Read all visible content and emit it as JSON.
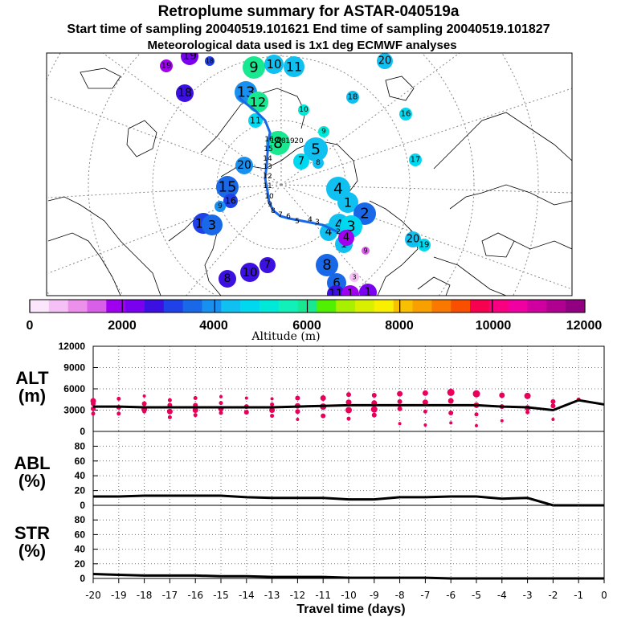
{
  "header": {
    "title": "Retroplume summary for ASTAR-040519a",
    "sampling": "Start time of sampling 20040519.101621     End time of sampling 20040519.101827",
    "met": "Meteorological data used is 1x1 deg ECMWF analyses"
  },
  "colorbar": {
    "title": "Altitude (m)",
    "ticks": [
      "0",
      "2000",
      "4000",
      "6000",
      "8000",
      "10000",
      "12000"
    ],
    "colors": [
      "#fbe6fb",
      "#f5c0f5",
      "#ec90ec",
      "#d860e8",
      "#a000f0",
      "#7a00f0",
      "#3c10e0",
      "#2040e8",
      "#1868e8",
      "#1890f0",
      "#10c0f0",
      "#00d8f0",
      "#00e8d8",
      "#10f0b8",
      "#18e890",
      "#50f000",
      "#a8f000",
      "#d8f000",
      "#f8f000",
      "#f8c000",
      "#f8a000",
      "#f87800",
      "#f85000",
      "#f80050",
      "#f80080",
      "#f000a0",
      "#d000a0",
      "#b00090",
      "#900080"
    ]
  },
  "map_clusters": [
    {
      "label": "19",
      "color": "#7a00f0",
      "size": 11
    },
    {
      "label": "18",
      "color": "#2040e8",
      "size": 6
    },
    {
      "label": "19",
      "color": "#a000f0",
      "size": 8
    },
    {
      "label": "18",
      "color": "#3c10e0",
      "size": 11
    },
    {
      "label": "9",
      "color": "#18e890",
      "size": 14
    },
    {
      "label": "10",
      "color": "#10c0f0",
      "size": 12
    },
    {
      "label": "11",
      "color": "#10c0f0",
      "size": 13
    },
    {
      "label": "20",
      "color": "#10c0f0",
      "size": 10
    },
    {
      "label": "13",
      "color": "#1890f0",
      "size": 14
    },
    {
      "label": "12",
      "color": "#18e890",
      "size": 13
    },
    {
      "label": "11",
      "color": "#00d8f0",
      "size": 9
    },
    {
      "label": "10",
      "color": "#00e8d8",
      "size": 7
    },
    {
      "label": "18",
      "color": "#10c0f0",
      "size": 8
    },
    {
      "label": "16",
      "color": "#00d8f0",
      "size": 8
    },
    {
      "label": "8",
      "color": "#18e890",
      "size": 15
    },
    {
      "label": "9",
      "color": "#00e8d8",
      "size": 7
    },
    {
      "label": "5",
      "color": "#10c0f0",
      "size": 15
    },
    {
      "label": "7",
      "color": "#00d8f0",
      "size": 10
    },
    {
      "label": "8",
      "color": "#10c0f0",
      "size": 7
    },
    {
      "label": "17",
      "color": "#00d8f0",
      "size": 8
    },
    {
      "label": "20",
      "color": "#1890f0",
      "size": 11
    },
    {
      "label": "4",
      "color": "#10c0f0",
      "size": 15
    },
    {
      "label": "1",
      "color": "#10c0f0",
      "size": 13
    },
    {
      "label": "2",
      "color": "#1868e8",
      "size": 14
    },
    {
      "label": "4",
      "color": "#10c0f0",
      "size": 13
    },
    {
      "label": "3",
      "color": "#00d8f0",
      "size": 14
    },
    {
      "label": "4",
      "color": "#10c0f0",
      "size": 11
    },
    {
      "label": "1",
      "color": "#10c0f0",
      "size": 11
    },
    {
      "label": "8",
      "color": "#1868e8",
      "size": 14
    },
    {
      "label": "15",
      "color": "#1868e8",
      "size": 14
    },
    {
      "label": "16",
      "color": "#2040e8",
      "size": 9
    },
    {
      "label": "9",
      "color": "#1890f0",
      "size": 7
    },
    {
      "label": "12",
      "color": "#2040e8",
      "size": 13
    },
    {
      "label": "3",
      "color": "#1868e8",
      "size": 13
    },
    {
      "label": "20",
      "color": "#10c0f0",
      "size": 10
    },
    {
      "label": "19",
      "color": "#00d8f0",
      "size": 8
    },
    {
      "label": "9",
      "color": "#d860e8",
      "size": 5
    },
    {
      "label": "6",
      "color": "#1868e8",
      "size": 12
    },
    {
      "label": "3",
      "color": "#f5c0f5",
      "size": 6
    },
    {
      "label": "7",
      "color": "#3c10e0",
      "size": 10
    },
    {
      "label": "10",
      "color": "#3c10e0",
      "size": 12
    },
    {
      "label": "8",
      "color": "#3c10e0",
      "size": 11
    },
    {
      "label": "11",
      "color": "#3c10e0",
      "size": 11
    },
    {
      "label": "1",
      "color": "#a000f0",
      "size": 11
    },
    {
      "label": "1",
      "color": "#7a00f0",
      "size": 11
    },
    {
      "label": "4",
      "color": "#a000f0",
      "size": 10
    }
  ],
  "path_labels": [
    "2",
    "3",
    "4",
    "5",
    "6",
    "7",
    "8",
    "9",
    "10",
    "11",
    "12",
    "13",
    "14",
    "15",
    "16",
    "17",
    "18",
    "19",
    "20"
  ],
  "chart_data": [
    {
      "type": "scatter",
      "panel_label": "ALT\n(m)",
      "ylabel_line1": "ALT",
      "ylabel_line2": "(m)",
      "ylim": [
        0,
        12000
      ],
      "yticks": [
        "0",
        "3000",
        "6000",
        "9000",
        "12000"
      ],
      "xlim": [
        -20,
        0
      ],
      "mean_line": {
        "x": [
          -20,
          -19,
          -18,
          -17,
          -16,
          -15,
          -14,
          -13,
          -12,
          -11,
          -10,
          -9,
          -8,
          -7,
          -6,
          -5,
          -4,
          -3,
          -2,
          -1,
          0
        ],
        "y": [
          3500,
          3500,
          3400,
          3400,
          3400,
          3400,
          3400,
          3400,
          3500,
          3600,
          3700,
          3700,
          3700,
          3700,
          3700,
          3700,
          3500,
          3400,
          3000,
          4400,
          3800
        ]
      },
      "scatter_points": {
        "x": [
          -20,
          -20,
          -20,
          -20,
          -19,
          -19,
          -19,
          -18,
          -18,
          -18,
          -18,
          -17,
          -17,
          -17,
          -17,
          -16,
          -16,
          -16,
          -16,
          -15,
          -15,
          -15,
          -15,
          -14,
          -14,
          -14,
          -13,
          -13,
          -13,
          -13,
          -12,
          -12,
          -12,
          -12,
          -11,
          -11,
          -11,
          -10,
          -10,
          -10,
          -10,
          -9,
          -9,
          -9,
          -9,
          -8,
          -8,
          -8,
          -8,
          -7,
          -7,
          -7,
          -7,
          -6,
          -6,
          -6,
          -6,
          -5,
          -5,
          -5,
          -5,
          -4,
          -4,
          -4,
          -3,
          -3,
          -3,
          -2,
          -2,
          -2,
          -1
        ],
        "y": [
          4300,
          3900,
          3200,
          2500,
          4600,
          3400,
          2500,
          5000,
          3900,
          3100,
          2800,
          4400,
          3700,
          2800,
          2000,
          4700,
          3700,
          3000,
          2300,
          4900,
          4000,
          3200,
          2600,
          4700,
          3500,
          2700,
          4600,
          3800,
          3000,
          2200,
          4700,
          3600,
          2800,
          1700,
          4700,
          3500,
          2200,
          5200,
          4100,
          3000,
          1800,
          5100,
          4000,
          3100,
          2300,
          5300,
          4200,
          3200,
          1100,
          5400,
          4100,
          2800,
          900,
          5500,
          4300,
          2600,
          1200,
          5300,
          3700,
          2400,
          800,
          5100,
          3500,
          1500,
          5000,
          3300,
          2700,
          4200,
          3600,
          1700,
          4500
        ],
        "size": [
          7,
          6,
          6,
          5,
          5,
          6,
          5,
          4,
          6,
          7,
          5,
          5,
          6,
          7,
          5,
          5,
          6,
          7,
          5,
          4,
          5,
          7,
          5,
          4,
          6,
          6,
          4,
          5,
          7,
          5,
          6,
          7,
          6,
          4,
          7,
          8,
          6,
          6,
          7,
          8,
          5,
          6,
          7,
          8,
          6,
          7,
          6,
          6,
          4,
          7,
          7,
          5,
          4,
          9,
          7,
          6,
          4,
          9,
          7,
          5,
          4,
          7,
          6,
          4,
          8,
          7,
          5,
          6,
          6,
          4,
          5
        ]
      }
    },
    {
      "type": "line",
      "ylabel_line1": "ABL",
      "ylabel_line2": "(%)",
      "ylim": [
        0,
        100
      ],
      "yticks": [
        "0",
        "20",
        "40",
        "60",
        "80"
      ],
      "x": [
        -20,
        -19,
        -18,
        -17,
        -16,
        -15,
        -14,
        -13,
        -12,
        -11,
        -10,
        -9,
        -8,
        -7,
        -6,
        -5,
        -4,
        -3,
        -2,
        -1,
        0
      ],
      "y": [
        12,
        12,
        13,
        13,
        13,
        13,
        11,
        10,
        10,
        10,
        8,
        8,
        11,
        11,
        12,
        12,
        9,
        10,
        0,
        0,
        0
      ]
    },
    {
      "type": "line",
      "ylabel_line1": "STR",
      "ylabel_line2": "(%)",
      "ylim": [
        0,
        100
      ],
      "yticks": [
        "0",
        "20",
        "40",
        "60",
        "80"
      ],
      "xlabel": "Travel time (days)",
      "xticks": [
        "-20",
        "-19",
        "-18",
        "-17",
        "-16",
        "-15",
        "-14",
        "-13",
        "-12",
        "-11",
        "-10",
        "-9",
        "-8",
        "-7",
        "-6",
        "-5",
        "-4",
        "-3",
        "-2",
        "-1",
        "0"
      ],
      "x": [
        -20,
        -19,
        -18,
        -17,
        -16,
        -15,
        -14,
        -13,
        -12,
        -11,
        -10,
        -9,
        -8,
        -7,
        -6,
        -5,
        -4,
        -3,
        -2,
        -1,
        0
      ],
      "y": [
        6,
        5,
        4,
        4,
        4,
        3,
        3,
        2,
        2,
        2,
        1,
        1,
        1,
        1,
        0,
        0,
        0,
        0,
        0,
        0,
        0
      ]
    }
  ]
}
